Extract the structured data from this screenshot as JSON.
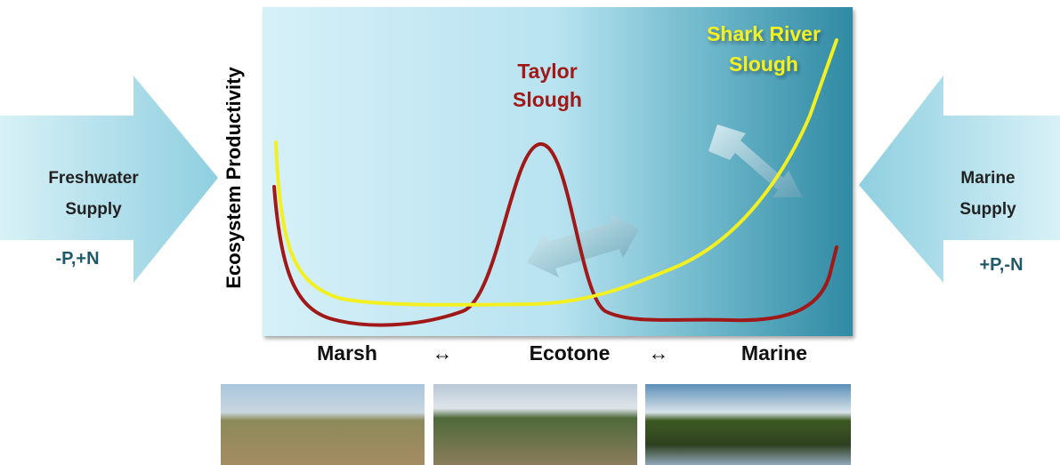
{
  "y_axis_label": "Ecosystem Productivity",
  "curves": {
    "taylor_slough": {
      "label": [
        "Taylor",
        "Slough"
      ],
      "color": "#a01818"
    },
    "shark_river_slough": {
      "label": [
        "Shark River",
        "Slough"
      ],
      "color": "#f2f020"
    }
  },
  "inputs": {
    "freshwater": {
      "label": [
        "Freshwater",
        "Supply"
      ],
      "nutrients": "-P,+N"
    },
    "marine": {
      "label": [
        "Marine",
        "Supply"
      ],
      "nutrients": "+P,-N"
    }
  },
  "gradient_axis": [
    "Marsh",
    "↔",
    "Ecotone",
    "↔",
    "Marine"
  ]
}
